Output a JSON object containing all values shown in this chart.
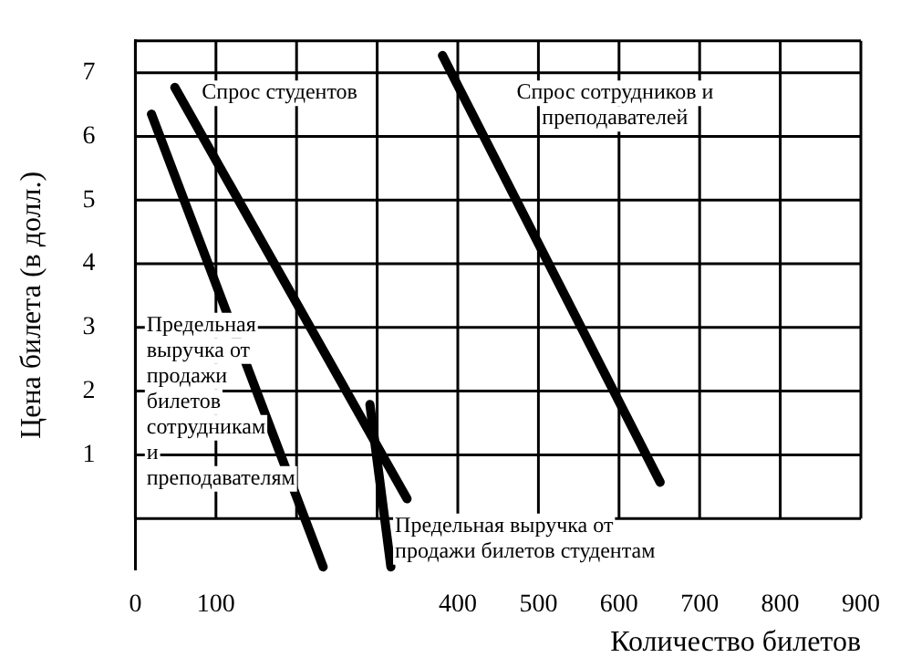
{
  "chart_data": {
    "type": "line",
    "xlabel": "Количество билетов",
    "ylabel": "Цена билета (в долл.)",
    "xlim": [
      0,
      900
    ],
    "ylim": [
      -0.8,
      7.5
    ],
    "xticks": [
      0,
      100,
      {
        "value": 200,
        "label": null
      },
      {
        "value": 300,
        "label": null
      },
      400,
      500,
      600,
      700,
      800,
      900
    ],
    "yticks": [
      {
        "value": 0,
        "label": null
      },
      1,
      2,
      3,
      4,
      5,
      6,
      7
    ],
    "grid": true,
    "marker": "none",
    "line_style": "solid",
    "series": [
      {
        "name": "Предельная выручка от продажи билетов сотрудникам и преподавателям",
        "color": "#000000",
        "x": [
          20,
          233
        ],
        "values": [
          6.35,
          -0.76
        ]
      },
      {
        "name": "Спрос студентов",
        "color": "#000000",
        "x": [
          49,
          337
        ],
        "values": [
          6.77,
          0.31
        ]
      },
      {
        "name": "Предельная выручка от продажи билетов студентам",
        "color": "#000000",
        "x": [
          291,
          317
        ],
        "values": [
          1.79,
          -0.76
        ]
      },
      {
        "name": "Спрос сотрудников и преподавателей",
        "color": "#000000",
        "x": [
          381,
          651
        ],
        "values": [
          7.27,
          0.57
        ]
      }
    ]
  }
}
